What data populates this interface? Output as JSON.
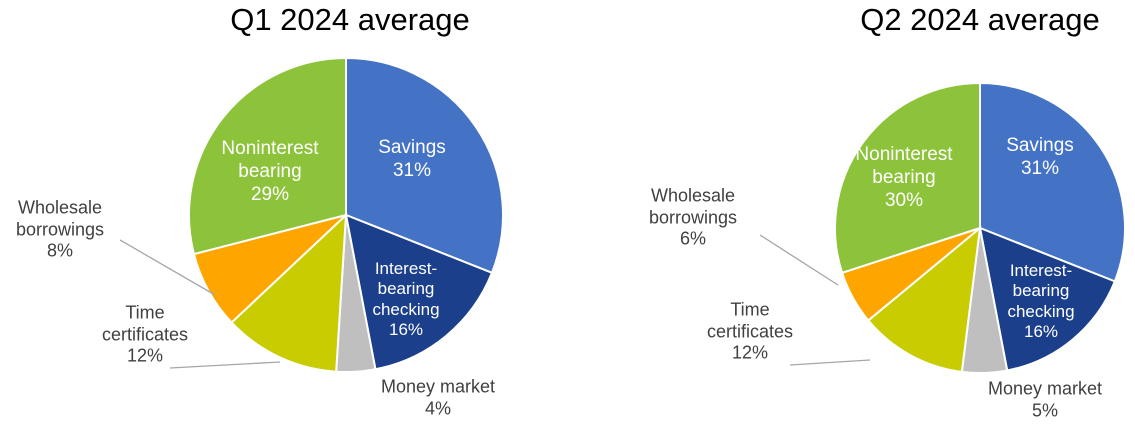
{
  "chart_data": [
    {
      "type": "pie",
      "title": "Q1 2024 average",
      "categories": [
        "Savings",
        "Interest-bearing checking",
        "Money market",
        "Time certificates",
        "Wholesale borrowings",
        "Noninterest bearing"
      ],
      "values": [
        31,
        16,
        4,
        12,
        8,
        29
      ],
      "value_labels": [
        "31%",
        "16%",
        "4%",
        "12%",
        "8%",
        "29%"
      ],
      "colors": [
        "#4472c4",
        "#1b3f8b",
        "#bfbfbf",
        "#c8cc00",
        "#ffa500",
        "#8dc33b"
      ]
    },
    {
      "type": "pie",
      "title": "Q2 2024 average",
      "categories": [
        "Savings",
        "Interest-bearing checking",
        "Money market",
        "Time certificates",
        "Wholesale borrowings",
        "Noninterest bearing"
      ],
      "values": [
        31,
        16,
        5,
        12,
        6,
        30
      ],
      "value_labels": [
        "31%",
        "16%",
        "5%",
        "12%",
        "6%",
        "30%"
      ],
      "colors": [
        "#4472c4",
        "#1b3f8b",
        "#bfbfbf",
        "#c8cc00",
        "#ffa500",
        "#8dc33b"
      ]
    }
  ]
}
